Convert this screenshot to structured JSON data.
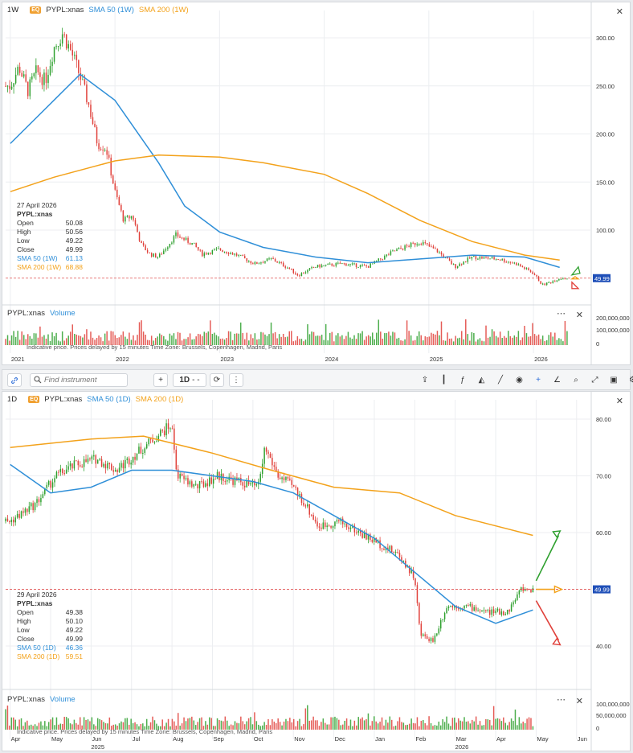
{
  "top_chart": {
    "timeframe": "1W",
    "badge": "EQ",
    "symbol": "PYPL:xnas",
    "sma50_label": "SMA 50 (1W)",
    "sma200_label": "SMA 200 (1W)",
    "legend": {
      "date": "27 April 2026",
      "symbol": "PYPL:xnas",
      "rows": [
        {
          "label": "Open",
          "value": "50.08"
        },
        {
          "label": "High",
          "value": "50.56"
        },
        {
          "label": "Low",
          "value": "49.22"
        },
        {
          "label": "Close",
          "value": "49.99"
        }
      ],
      "sma50": {
        "label": "SMA 50 (1W)",
        "value": "61.13"
      },
      "sma200": {
        "label": "SMA 200 (1W)",
        "value": "68.88"
      }
    },
    "last_price_tag": "49.99",
    "volume_label_symbol": "PYPL:xnas",
    "volume_label": "Volume",
    "note": "Indicative price. Prices delayed by 15 minutes   Time Zone: Brussels, Copenhagen, Madrid, Paris",
    "close_icon": "close-icon"
  },
  "toolbar": {
    "search_placeholder": "Find instrument",
    "plus": "+",
    "interval": "1D",
    "interval_suffix": "- -",
    "icons": [
      "link-icon",
      "search-icon",
      "plus-icon",
      "refresh-icon",
      "more-vertical-icon",
      "share-icon",
      "candles-icon",
      "indicators-icon",
      "area-icon",
      "draw-line-icon",
      "eye-icon",
      "crosshair-icon",
      "curve-icon",
      "zoom-icon",
      "fullscreen-icon",
      "camera-icon",
      "settings-icon"
    ]
  },
  "bottom_chart": {
    "timeframe": "1D",
    "badge": "EQ",
    "symbol": "PYPL:xnas",
    "sma50_label": "SMA 50 (1D)",
    "sma200_label": "SMA 200 (1D)",
    "legend": {
      "date": "29 April 2026",
      "symbol": "PYPL:xnas",
      "rows": [
        {
          "label": "Open",
          "value": "49.38"
        },
        {
          "label": "High",
          "value": "50.10"
        },
        {
          "label": "Low",
          "value": "49.22"
        },
        {
          "label": "Close",
          "value": "49.99"
        }
      ],
      "sma50": {
        "label": "SMA 50 (1D)",
        "value": "46.36"
      },
      "sma200": {
        "label": "SMA 200 (1D)",
        "value": "59.51"
      }
    },
    "last_price_tag": "49.99",
    "volume_label_symbol": "PYPL:xnas",
    "volume_label": "Volume",
    "note": "Indicative price. Prices delayed by 15 minutes   Time Zone: Brussels, Copenhagen, Madrid, Paris"
  },
  "colors": {
    "up": "#2ea02e",
    "down": "#e0403a",
    "sma50": "#2f8fd8",
    "sma200": "#f3a21b",
    "tag": "#1f4fb8",
    "grid": "#eceef1"
  },
  "chart_data": [
    {
      "type": "candlestick",
      "title": "PYPL:xnas 1W",
      "price_axis_ticks": [
        "300.00",
        "250.00",
        "200.00",
        "150.00",
        "100.00"
      ],
      "ylim": [
        38,
        315
      ],
      "time_axis_ticks": [
        "2021",
        "2022",
        "2023",
        "2024",
        "2025",
        "2026"
      ],
      "close_path": [
        [
          "2021-01",
          250
        ],
        [
          "2021-02",
          270
        ],
        [
          "2021-03",
          245
        ],
        [
          "2021-04",
          265
        ],
        [
          "2021-05",
          255
        ],
        [
          "2021-06",
          290
        ],
        [
          "2021-07",
          305
        ],
        [
          "2021-08",
          285
        ],
        [
          "2021-09",
          260
        ],
        [
          "2021-10",
          230
        ],
        [
          "2021-11",
          190
        ],
        [
          "2021-12",
          185
        ],
        [
          "2022-01",
          140
        ],
        [
          "2022-02",
          110
        ],
        [
          "2022-03",
          115
        ],
        [
          "2022-04",
          85
        ],
        [
          "2022-05",
          75
        ],
        [
          "2022-06",
          72
        ],
        [
          "2022-08",
          95
        ],
        [
          "2022-10",
          85
        ],
        [
          "2022-11",
          75
        ],
        [
          "2023-01",
          80
        ],
        [
          "2023-03",
          74
        ],
        [
          "2023-05",
          65
        ],
        [
          "2023-07",
          70
        ],
        [
          "2023-09",
          60
        ],
        [
          "2023-10",
          53
        ],
        [
          "2023-12",
          62
        ],
        [
          "2024-03",
          65
        ],
        [
          "2024-06",
          62
        ],
        [
          "2024-09",
          78
        ],
        [
          "2024-12",
          88
        ],
        [
          "2025-02",
          78
        ],
        [
          "2025-04",
          62
        ],
        [
          "2025-06",
          72
        ],
        [
          "2025-09",
          70
        ],
        [
          "2025-11",
          65
        ],
        [
          "2026-01",
          55
        ],
        [
          "2026-02",
          43
        ],
        [
          "2026-03",
          46
        ],
        [
          "2026-04",
          50
        ]
      ],
      "sma50": [
        [
          "2021-01",
          190
        ],
        [
          "2021-06",
          235
        ],
        [
          "2021-09",
          262
        ],
        [
          "2022-01",
          235
        ],
        [
          "2022-06",
          170
        ],
        [
          "2022-09",
          125
        ],
        [
          "2023-01",
          98
        ],
        [
          "2023-06",
          82
        ],
        [
          "2023-12",
          72
        ],
        [
          "2024-06",
          66
        ],
        [
          "2024-12",
          70
        ],
        [
          "2025-06",
          74
        ],
        [
          "2025-12",
          72
        ],
        [
          "2026-04",
          61.13
        ]
      ],
      "sma200": [
        [
          "2021-01",
          140
        ],
        [
          "2021-06",
          155
        ],
        [
          "2022-01",
          172
        ],
        [
          "2022-06",
          178
        ],
        [
          "2023-01",
          176
        ],
        [
          "2023-06",
          170
        ],
        [
          "2024-01",
          158
        ],
        [
          "2024-06",
          138
        ],
        [
          "2024-12",
          110
        ],
        [
          "2025-06",
          88
        ],
        [
          "2025-12",
          74
        ],
        [
          "2026-04",
          68.88
        ]
      ],
      "volume_axis_ticks": [
        "200,000,000",
        "100,000,000",
        "0"
      ],
      "last_close": 49.99
    },
    {
      "type": "candlestick",
      "title": "PYPL:xnas 1D",
      "price_axis_ticks": [
        "80.00",
        "70.00",
        "60.00",
        "40.00"
      ],
      "ylim": [
        37,
        82
      ],
      "time_axis_ticks": [
        "Apr",
        "May",
        "Jun",
        "Jul",
        "Aug",
        "Sep",
        "Oct",
        "Nov",
        "Dec",
        "Jan",
        "Feb",
        "Mar",
        "Apr",
        "May",
        "Jun"
      ],
      "year_labels": [
        "2025",
        "2026"
      ],
      "close_path": [
        [
          "2025-04-01",
          62
        ],
        [
          "2025-04-20",
          65
        ],
        [
          "2025-05-05",
          70
        ],
        [
          "2025-05-20",
          72
        ],
        [
          "2025-06-05",
          73
        ],
        [
          "2025-06-20",
          71
        ],
        [
          "2025-07-05",
          74
        ],
        [
          "2025-07-20",
          77
        ],
        [
          "2025-07-31",
          79
        ],
        [
          "2025-08-05",
          70
        ],
        [
          "2025-08-20",
          68
        ],
        [
          "2025-09-05",
          70
        ],
        [
          "2025-09-20",
          69
        ],
        [
          "2025-10-05",
          68
        ],
        [
          "2025-10-10",
          75
        ],
        [
          "2025-10-20",
          70
        ],
        [
          "2025-11-01",
          68
        ],
        [
          "2025-11-10",
          65
        ],
        [
          "2025-11-20",
          61
        ],
        [
          "2025-12-05",
          62
        ],
        [
          "2025-12-20",
          60
        ],
        [
          "2026-01-05",
          58
        ],
        [
          "2026-01-20",
          56
        ],
        [
          "2026-02-01",
          52
        ],
        [
          "2026-02-05",
          42
        ],
        [
          "2026-02-15",
          41
        ],
        [
          "2026-02-25",
          47
        ],
        [
          "2026-03-10",
          47
        ],
        [
          "2026-03-25",
          46
        ],
        [
          "2026-04-10",
          46
        ],
        [
          "2026-04-20",
          50
        ],
        [
          "2026-04-29",
          49.99
        ]
      ],
      "sma50": [
        [
          "2025-04-01",
          72
        ],
        [
          "2025-05-01",
          67
        ],
        [
          "2025-06-01",
          68
        ],
        [
          "2025-07-01",
          71
        ],
        [
          "2025-08-01",
          71
        ],
        [
          "2025-09-01",
          70
        ],
        [
          "2025-10-01",
          69
        ],
        [
          "2025-11-01",
          67
        ],
        [
          "2025-12-01",
          63
        ],
        [
          "2026-01-01",
          59
        ],
        [
          "2026-02-01",
          53
        ],
        [
          "2026-03-01",
          47
        ],
        [
          "2026-04-01",
          44
        ],
        [
          "2026-04-29",
          46.36
        ]
      ],
      "sma200": [
        [
          "2025-04-01",
          75
        ],
        [
          "2025-06-01",
          76.5
        ],
        [
          "2025-07-10",
          77
        ],
        [
          "2025-09-01",
          74
        ],
        [
          "2025-10-15",
          71
        ],
        [
          "2025-12-01",
          68
        ],
        [
          "2026-01-20",
          67
        ],
        [
          "2026-03-01",
          63
        ],
        [
          "2026-04-29",
          59.51
        ]
      ],
      "projection_arrows": [
        "up",
        "flat",
        "down"
      ],
      "volume_axis_ticks": [
        "100,000,000",
        "50,000,000",
        "0"
      ],
      "last_close": 49.99
    }
  ]
}
